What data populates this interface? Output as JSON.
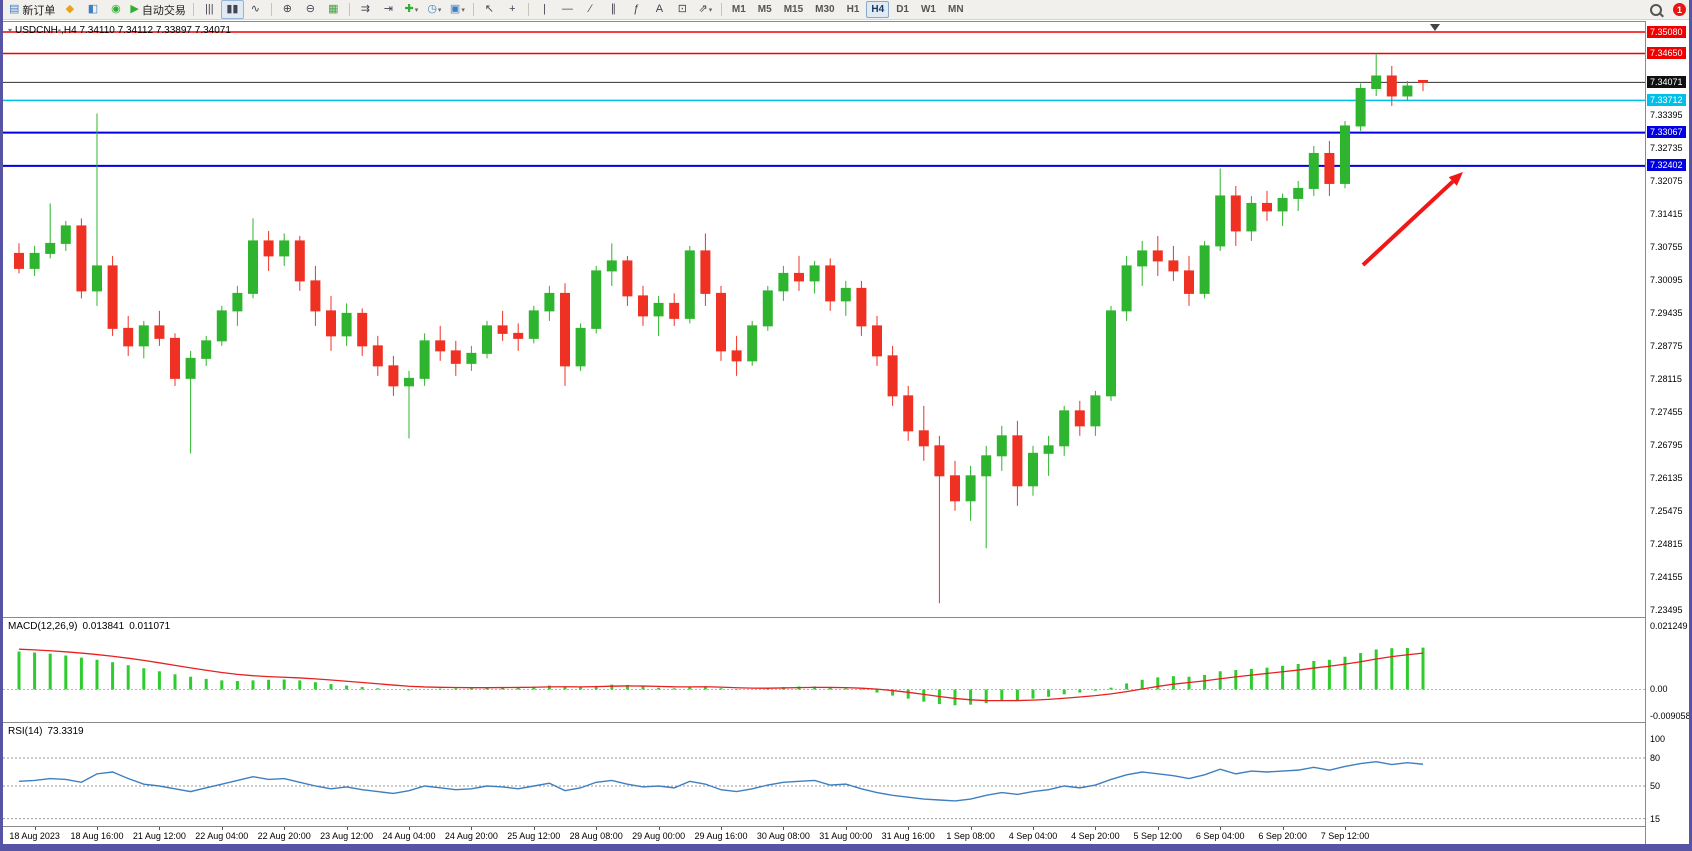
{
  "window": {
    "border_color": "#5753a5"
  },
  "toolbar": {
    "items": [
      {
        "type": "btn",
        "name": "new-order-button",
        "icon": "new-order-icon",
        "glyph": "▤",
        "color": "#3f7fc1",
        "label": "新订单"
      },
      {
        "type": "btn",
        "name": "charts-button",
        "icon": "charts-icon",
        "glyph": "◆",
        "color": "#e8a417"
      },
      {
        "type": "btn",
        "name": "profiles-button",
        "icon": "profiles-icon",
        "glyph": "◧",
        "color": "#3f7fc1"
      },
      {
        "type": "btn",
        "name": "market-watch-button",
        "icon": "market-watch-icon",
        "glyph": "◉",
        "color": "#2fae2f"
      },
      {
        "type": "btn",
        "name": "autotrading-button",
        "icon": "autotrading-play-icon",
        "glyph": "▶",
        "color": "#2fae2f",
        "label": "自动交易"
      },
      {
        "type": "sep"
      },
      {
        "type": "btn",
        "name": "bar-chart-button",
        "icon": "bar-chart-icon",
        "glyph": "|||",
        "color": "#444455"
      },
      {
        "type": "btn",
        "name": "candlestick-chart-button",
        "icon": "candlestick-icon",
        "glyph": "▮▮",
        "color": "#444455",
        "active": true
      },
      {
        "type": "btn",
        "name": "line-chart-button",
        "icon": "line-chart-icon",
        "glyph": "∿",
        "color": "#444455"
      },
      {
        "type": "sep"
      },
      {
        "type": "btn",
        "name": "zoom-in-button",
        "icon": "zoom-in-icon",
        "glyph": "⊕",
        "color": "#444455"
      },
      {
        "type": "btn",
        "name": "zoom-out-button",
        "icon": "zoom-out-icon",
        "glyph": "⊖",
        "color": "#444455"
      },
      {
        "type": "btn",
        "name": "tile-windows-button",
        "icon": "tile-windows-icon",
        "glyph": "▦",
        "color": "#3f9f3f"
      },
      {
        "type": "sep"
      },
      {
        "type": "btn",
        "name": "auto-scroll-button",
        "icon": "auto-scroll-icon",
        "glyph": "⇉",
        "color": "#444455"
      },
      {
        "type": "btn",
        "name": "chart-shift-button",
        "icon": "chart-shift-icon",
        "glyph": "⇥",
        "color": "#444455"
      },
      {
        "type": "btn",
        "name": "indicators-button",
        "icon": "add-indicator-icon",
        "glyph": "✚",
        "color": "#2fae2f",
        "dropdown": true
      },
      {
        "type": "btn",
        "name": "periods-button",
        "icon": "clock-icon",
        "glyph": "◷",
        "color": "#3f7fc1",
        "dropdown": true
      },
      {
        "type": "btn",
        "name": "templates-button",
        "icon": "template-icon",
        "glyph": "▣",
        "color": "#3f7fc1",
        "dropdown": true
      },
      {
        "type": "sep"
      },
      {
        "type": "btn",
        "name": "cursor-button",
        "icon": "cursor-icon",
        "glyph": "↖",
        "color": "#444455"
      },
      {
        "type": "btn",
        "name": "crosshair-button",
        "icon": "crosshair-icon",
        "glyph": "+",
        "color": "#444455"
      },
      {
        "type": "sep"
      },
      {
        "type": "btn",
        "name": "vertical-line-button",
        "icon": "vertical-line-icon",
        "glyph": "|",
        "color": "#444455"
      },
      {
        "type": "btn",
        "name": "horizontal-line-button",
        "icon": "horizontal-line-icon",
        "glyph": "—",
        "color": "#444455"
      },
      {
        "type": "btn",
        "name": "trendline-button",
        "icon": "trendline-icon",
        "glyph": "∕",
        "color": "#444455"
      },
      {
        "type": "btn",
        "name": "channel-button",
        "icon": "channel-icon",
        "glyph": "∥",
        "color": "#444455"
      },
      {
        "type": "btn",
        "name": "fibonacci-button",
        "icon": "fibonacci-icon",
        "glyph": "ƒ",
        "color": "#444455"
      },
      {
        "type": "btn",
        "name": "text-button",
        "icon": "text-icon",
        "glyph": "A",
        "color": "#444455"
      },
      {
        "type": "btn",
        "name": "text-label-button",
        "icon": "text-label-icon",
        "glyph": "⊡",
        "color": "#444455"
      },
      {
        "type": "btn",
        "name": "arrows-button",
        "icon": "arrows-icon",
        "glyph": "⇗",
        "color": "#444455",
        "dropdown": true
      },
      {
        "type": "sep"
      }
    ],
    "timeframes": [
      "M1",
      "M5",
      "M15",
      "M30",
      "H1",
      "H4",
      "D1",
      "W1",
      "MN"
    ],
    "active_timeframe": "H4",
    "notification_count": "1"
  },
  "chart": {
    "symbol_menu_icon": "▾",
    "title_text": "USDCNH-,H4  7.34110 7.34112 7.33897 7.34071"
  },
  "chart_data": {
    "type": "candlestick",
    "symbol": "USDCNH-",
    "timeframe": "H4",
    "ohlc_current": {
      "open": 7.3411,
      "high": 7.34112,
      "low": 7.33897,
      "close": 7.34071
    },
    "colors": {
      "up": "#2eb42e",
      "down": "#ef3124"
    },
    "y_axis": {
      "p_top": 7.3508,
      "p_bottom": 7.23495,
      "tick_labels": [
        "7.33395",
        "7.32735",
        "7.32075",
        "7.31415",
        "7.30755",
        "7.30095",
        "7.29435",
        "7.28775",
        "7.28115",
        "7.27455",
        "7.26795",
        "7.26135",
        "7.25475",
        "7.24815",
        "7.24155",
        "7.23495"
      ],
      "badges": [
        {
          "value": "7.35080",
          "price": 7.3508,
          "bg": "#f00000"
        },
        {
          "value": "7.34650",
          "price": 7.3465,
          "bg": "#f00000"
        },
        {
          "value": "7.34071",
          "price": 7.34071,
          "bg": "#101010"
        },
        {
          "value": "7.33712",
          "price": 7.33712,
          "bg": "#00bfe8"
        },
        {
          "value": "7.33067",
          "price": 7.33067,
          "bg": "#0000e0"
        },
        {
          "value": "7.32402",
          "price": 7.32402,
          "bg": "#0000e0"
        }
      ]
    },
    "hlines": [
      {
        "price": 7.3508,
        "color": "#f00000",
        "width": 1.4
      },
      {
        "price": 7.3465,
        "color": "#f00000",
        "width": 1.4
      },
      {
        "price": 7.33712,
        "color": "#00bfe8",
        "width": 1.6
      },
      {
        "price": 7.33067,
        "color": "#0000e0",
        "width": 2
      },
      {
        "price": 7.32402,
        "color": "#0000e0",
        "width": 2
      }
    ],
    "bid_line": {
      "price": 7.34071,
      "color": "#333333"
    },
    "arrow": {
      "color": "#f21717"
    },
    "x_label_offset": 1,
    "x_label_every": 4,
    "x_labels": [
      "18 Aug 2023",
      "18 Aug 16:00",
      "21 Aug 12:00",
      "22 Aug 04:00",
      "22 Aug 20:00",
      "23 Aug 12:00",
      "24 Aug 04:00",
      "24 Aug 20:00",
      "25 Aug 12:00",
      "28 Aug 08:00",
      "29 Aug 00:00",
      "29 Aug 16:00",
      "30 Aug 08:00",
      "31 Aug 00:00",
      "31 Aug 16:00",
      "1 Sep 08:00",
      "4 Sep 04:00",
      "4 Sep 20:00",
      "5 Sep 12:00",
      "6 Sep 04:00",
      "6 Sep 20:00",
      "7 Sep 12:00"
    ],
    "candles": [
      [
        7.3065,
        7.3085,
        7.3025,
        7.3035
      ],
      [
        7.3035,
        7.308,
        7.302,
        7.3065
      ],
      [
        7.3065,
        7.3165,
        7.3055,
        7.3085
      ],
      [
        7.3085,
        7.313,
        7.307,
        7.312
      ],
      [
        7.312,
        7.3135,
        7.2975,
        7.299
      ],
      [
        7.299,
        7.3345,
        7.296,
        7.304
      ],
      [
        7.304,
        7.306,
        7.29,
        7.2915
      ],
      [
        7.2915,
        7.294,
        7.286,
        7.288
      ],
      [
        7.288,
        7.293,
        7.2855,
        7.292
      ],
      [
        7.292,
        7.295,
        7.288,
        7.2895
      ],
      [
        7.2895,
        7.2905,
        7.28,
        7.2815
      ],
      [
        7.2815,
        7.287,
        7.2665,
        7.2855
      ],
      [
        7.2855,
        7.29,
        7.284,
        7.289
      ],
      [
        7.289,
        7.296,
        7.288,
        7.295
      ],
      [
        7.295,
        7.3,
        7.292,
        7.2985
      ],
      [
        7.2985,
        7.3135,
        7.2975,
        7.309
      ],
      [
        7.309,
        7.311,
        7.303,
        7.306
      ],
      [
        7.306,
        7.3105,
        7.304,
        7.309
      ],
      [
        7.309,
        7.31,
        7.299,
        7.301
      ],
      [
        7.301,
        7.304,
        7.292,
        7.295
      ],
      [
        7.295,
        7.298,
        7.287,
        7.29
      ],
      [
        7.29,
        7.2965,
        7.288,
        7.2945
      ],
      [
        7.2945,
        7.2955,
        7.286,
        7.288
      ],
      [
        7.288,
        7.29,
        7.282,
        7.284
      ],
      [
        7.284,
        7.286,
        7.278,
        7.28
      ],
      [
        7.28,
        7.283,
        7.2695,
        7.2815
      ],
      [
        7.2815,
        7.2905,
        7.28,
        7.289
      ],
      [
        7.289,
        7.292,
        7.285,
        7.287
      ],
      [
        7.287,
        7.289,
        7.282,
        7.2845
      ],
      [
        7.2845,
        7.288,
        7.283,
        7.2865
      ],
      [
        7.2865,
        7.293,
        7.2855,
        7.292
      ],
      [
        7.292,
        7.295,
        7.289,
        7.2905
      ],
      [
        7.2905,
        7.2925,
        7.287,
        7.2895
      ],
      [
        7.2895,
        7.296,
        7.2885,
        7.295
      ],
      [
        7.295,
        7.3,
        7.293,
        7.2985
      ],
      [
        7.2985,
        7.3005,
        7.28,
        7.284
      ],
      [
        7.284,
        7.2925,
        7.283,
        7.2915
      ],
      [
        7.2915,
        7.304,
        7.2905,
        7.303
      ],
      [
        7.303,
        7.3085,
        7.3,
        7.305
      ],
      [
        7.305,
        7.306,
        7.296,
        7.298
      ],
      [
        7.298,
        7.3,
        7.292,
        7.294
      ],
      [
        7.294,
        7.298,
        7.29,
        7.2965
      ],
      [
        7.2965,
        7.2985,
        7.292,
        7.2935
      ],
      [
        7.2935,
        7.308,
        7.2925,
        7.307
      ],
      [
        7.307,
        7.3105,
        7.296,
        7.2985
      ],
      [
        7.2985,
        7.3,
        7.285,
        7.287
      ],
      [
        7.287,
        7.29,
        7.282,
        7.285
      ],
      [
        7.285,
        7.293,
        7.284,
        7.292
      ],
      [
        7.292,
        7.3,
        7.291,
        7.299
      ],
      [
        7.299,
        7.304,
        7.297,
        7.3025
      ],
      [
        7.3025,
        7.306,
        7.299,
        7.301
      ],
      [
        7.301,
        7.305,
        7.2985,
        7.304
      ],
      [
        7.304,
        7.3055,
        7.295,
        7.297
      ],
      [
        7.297,
        7.301,
        7.294,
        7.2995
      ],
      [
        7.2995,
        7.301,
        7.29,
        7.292
      ],
      [
        7.292,
        7.294,
        7.284,
        7.286
      ],
      [
        7.286,
        7.288,
        7.276,
        7.278
      ],
      [
        7.278,
        7.28,
        7.269,
        7.271
      ],
      [
        7.271,
        7.276,
        7.265,
        7.268
      ],
      [
        7.268,
        7.27,
        7.2365,
        7.262
      ],
      [
        7.262,
        7.265,
        7.255,
        7.257
      ],
      [
        7.257,
        7.264,
        7.253,
        7.262
      ],
      [
        7.262,
        7.268,
        7.2475,
        7.266
      ],
      [
        7.266,
        7.272,
        7.263,
        7.27
      ],
      [
        7.27,
        7.273,
        7.256,
        7.26
      ],
      [
        7.26,
        7.268,
        7.258,
        7.2665
      ],
      [
        7.2665,
        7.27,
        7.262,
        7.268
      ],
      [
        7.268,
        7.276,
        7.266,
        7.275
      ],
      [
        7.275,
        7.277,
        7.27,
        7.272
      ],
      [
        7.272,
        7.279,
        7.27,
        7.278
      ],
      [
        7.278,
        7.296,
        7.277,
        7.295
      ],
      [
        7.295,
        7.306,
        7.293,
        7.304
      ],
      [
        7.304,
        7.309,
        7.3,
        7.307
      ],
      [
        7.307,
        7.31,
        7.302,
        7.305
      ],
      [
        7.305,
        7.308,
        7.301,
        7.303
      ],
      [
        7.303,
        7.306,
        7.296,
        7.2985
      ],
      [
        7.2985,
        7.309,
        7.2975,
        7.308
      ],
      [
        7.308,
        7.3235,
        7.307,
        7.318
      ],
      [
        7.318,
        7.32,
        7.308,
        7.311
      ],
      [
        7.311,
        7.318,
        7.309,
        7.3165
      ],
      [
        7.3165,
        7.319,
        7.313,
        7.315
      ],
      [
        7.315,
        7.3185,
        7.312,
        7.3175
      ],
      [
        7.3175,
        7.321,
        7.315,
        7.3195
      ],
      [
        7.3195,
        7.328,
        7.318,
        7.3265
      ],
      [
        7.3265,
        7.329,
        7.318,
        7.3205
      ],
      [
        7.3205,
        7.333,
        7.3195,
        7.332
      ],
      [
        7.332,
        7.3405,
        7.331,
        7.3395
      ],
      [
        7.3395,
        7.3465,
        7.338,
        7.342
      ],
      [
        7.342,
        7.344,
        7.336,
        7.338
      ],
      [
        7.338,
        7.341,
        7.337,
        7.34
      ],
      [
        7.3411,
        7.34112,
        7.33897,
        7.34071
      ]
    ],
    "macd": {
      "title": "MACD(12,26,9)",
      "value_main": "0.013841",
      "value_signal": "0.011071",
      "range_max": 0.021249,
      "range_min": -0.009058,
      "axis_labels": [
        "0.021249",
        "0.00",
        "-0.009058"
      ],
      "hist_color": "#2ecc2e",
      "signal_color": "#e82020",
      "hist": [
        0.0125,
        0.0122,
        0.0118,
        0.0112,
        0.0105,
        0.0098,
        0.009,
        0.008,
        0.007,
        0.006,
        0.005,
        0.0042,
        0.0035,
        0.003,
        0.0028,
        0.003,
        0.0032,
        0.0033,
        0.003,
        0.0024,
        0.0018,
        0.0013,
        0.0008,
        0.0004,
        0.0,
        -0.0003,
        0.0,
        0.0003,
        0.0004,
        0.0004,
        0.0006,
        0.0008,
        0.0008,
        0.001,
        0.0013,
        0.001,
        0.0008,
        0.0012,
        0.0016,
        0.0015,
        0.001,
        0.0006,
        0.0004,
        0.0008,
        0.001,
        0.0004,
        -0.0002,
        0.0,
        0.0004,
        0.0008,
        0.001,
        0.001,
        0.0006,
        0.0004,
        -0.0002,
        -0.001,
        -0.002,
        -0.003,
        -0.004,
        -0.0048,
        -0.0052,
        -0.005,
        -0.0045,
        -0.0038,
        -0.0035,
        -0.003,
        -0.0024,
        -0.0016,
        -0.001,
        -0.0004,
        0.0006,
        0.002,
        0.0032,
        0.004,
        0.0044,
        0.0042,
        0.0048,
        0.006,
        0.0064,
        0.0068,
        0.0072,
        0.0078,
        0.0084,
        0.0094,
        0.0098,
        0.0108,
        0.012,
        0.0132,
        0.0136,
        0.0137,
        0.0138
      ]
    },
    "rsi": {
      "title": "RSI(14)",
      "value": "73.3319",
      "line_color": "#3f7fc1",
      "levels": [
        80,
        50,
        15
      ],
      "axis_labels": [
        "100",
        "80",
        "50",
        "15"
      ],
      "values": [
        55,
        56,
        58,
        57,
        54,
        63,
        65,
        58,
        52,
        50,
        47,
        44,
        48,
        52,
        56,
        60,
        57,
        58,
        54,
        50,
        47,
        49,
        46,
        44,
        42,
        45,
        50,
        48,
        46,
        47,
        50,
        49,
        47,
        50,
        53,
        45,
        48,
        54,
        56,
        52,
        49,
        50,
        48,
        55,
        52,
        46,
        44,
        47,
        51,
        54,
        55,
        56,
        51,
        52,
        47,
        43,
        40,
        38,
        36,
        35,
        34,
        36,
        40,
        43,
        41,
        44,
        46,
        50,
        48,
        51,
        57,
        62,
        65,
        63,
        61,
        58,
        62,
        68,
        63,
        66,
        65,
        66,
        67,
        70,
        67,
        71,
        74,
        76,
        73,
        75,
        73.3
      ]
    }
  }
}
